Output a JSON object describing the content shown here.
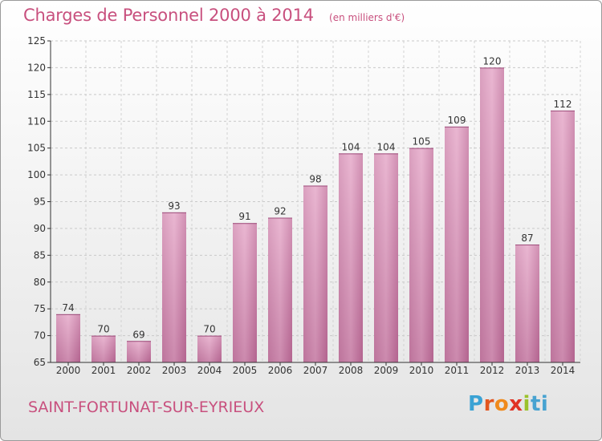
{
  "title": "Charges de Personnel 2000 à 2014",
  "subtitle": "(en milliers d'€)",
  "commune": "SAINT-FORTUNAT-SUR-EYRIEUX",
  "logo": {
    "letters": [
      "P",
      "r",
      "o",
      "x",
      "i",
      "t",
      "i"
    ]
  },
  "colors": {
    "title": "#c8507e",
    "bar_light": "#eab8d3",
    "bar_dark": "#b2628e",
    "axis": "#333333"
  },
  "chart_data": {
    "type": "bar",
    "title": "Charges de Personnel 2000 à 2014",
    "subtitle": "(en milliers d'€)",
    "categories": [
      "2000",
      "2001",
      "2002",
      "2003",
      "2004",
      "2005",
      "2006",
      "2007",
      "2008",
      "2009",
      "2010",
      "2011",
      "2012",
      "2013",
      "2014"
    ],
    "values": [
      74,
      70,
      69,
      93,
      70,
      91,
      92,
      98,
      104,
      104,
      105,
      109,
      120,
      87,
      112
    ],
    "ylim": [
      65,
      125
    ],
    "yticks": [
      65,
      70,
      75,
      80,
      85,
      90,
      95,
      100,
      105,
      110,
      115,
      120,
      125
    ],
    "grid": true,
    "legend": "none"
  }
}
